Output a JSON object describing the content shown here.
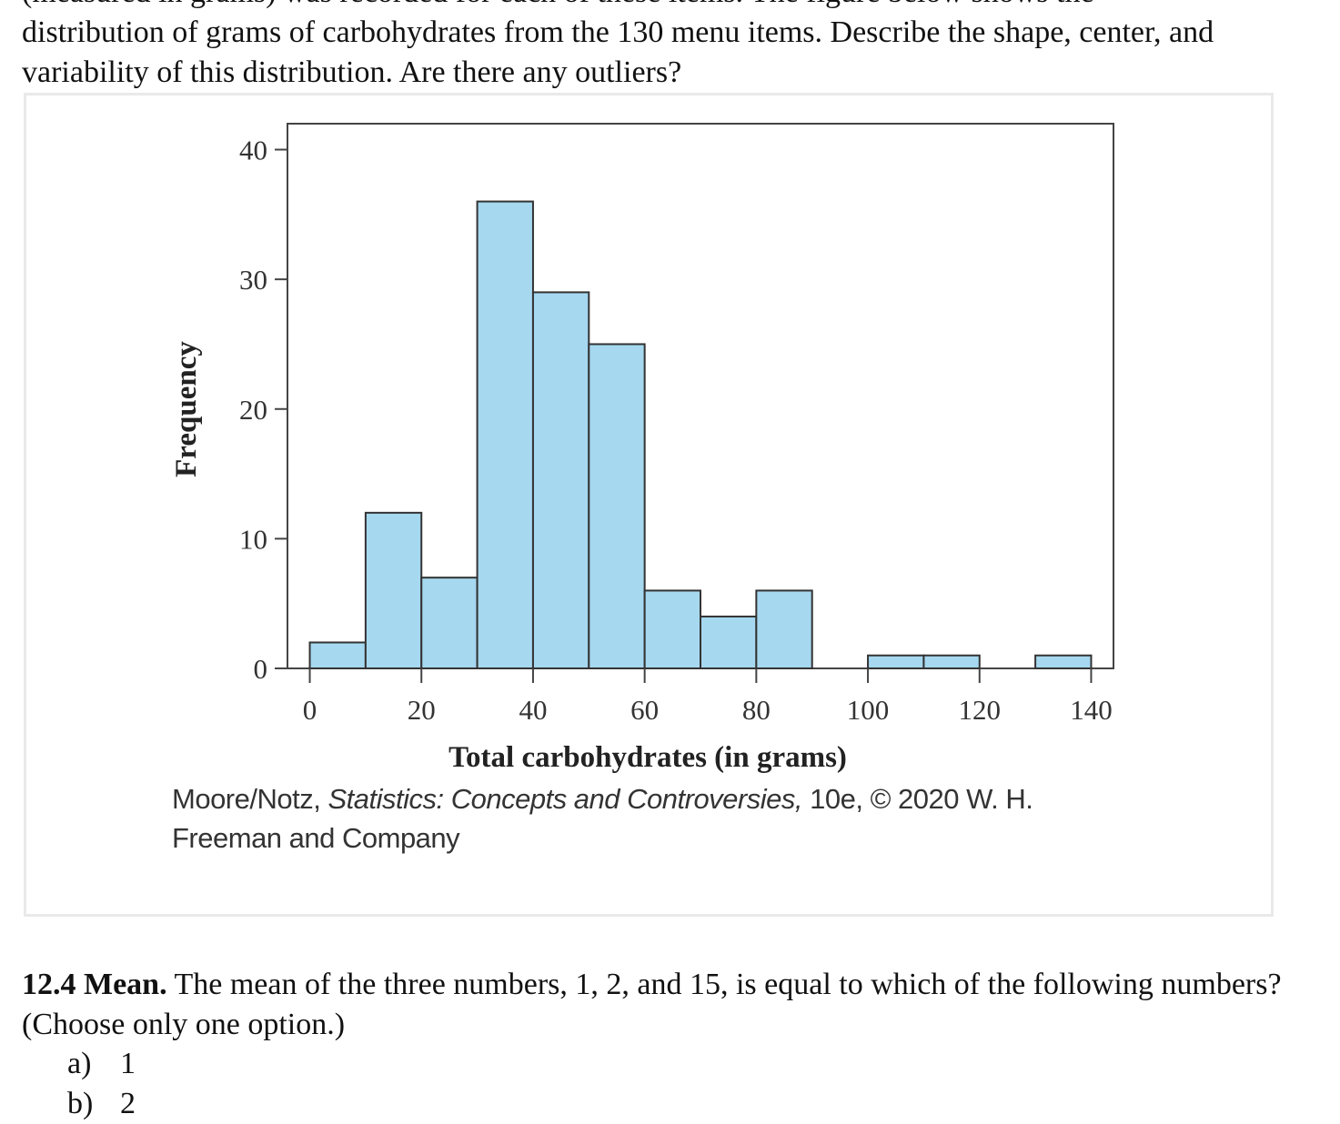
{
  "intro": {
    "cut_line": "(measured in grams) was recorded for each of these items. The figure below shows the",
    "text": "distribution of grams of carbohydrates from the 130 menu items. Describe the shape, center, and variability of this distribution. Are there any outliers?"
  },
  "colors": {
    "bar_fill": "#a6d8f0",
    "bar_stroke": "#333333",
    "axis": "#444444"
  },
  "chart_data": {
    "type": "bar",
    "title": "",
    "xlabel": "Total carbohydrates (in grams)",
    "ylabel": "Frequency",
    "bin_width": 10,
    "bin_starts": [
      0,
      10,
      20,
      30,
      40,
      50,
      60,
      70,
      80,
      90,
      100,
      110,
      120,
      130
    ],
    "values": [
      2,
      12,
      7,
      36,
      29,
      25,
      6,
      4,
      6,
      0,
      1,
      1,
      0,
      1
    ],
    "xlim": [
      -4,
      144
    ],
    "ylim": [
      0,
      42
    ],
    "x_ticks": [
      0,
      20,
      40,
      60,
      80,
      100,
      120,
      140
    ],
    "x_tick_labels": [
      "0",
      "20",
      "40",
      "60",
      "80",
      "100",
      "120",
      "140"
    ],
    "y_ticks": [
      0,
      10,
      20,
      30,
      40
    ],
    "y_tick_labels": [
      "0",
      "10",
      "20",
      "30",
      "40"
    ],
    "grid": false,
    "legend": "none"
  },
  "credit": {
    "authors": "Moore/Notz,",
    "book": "Statistics: Concepts and Controversies,",
    "rest": "10e, © 2020 W. H. Freeman and Company"
  },
  "question": {
    "number": "12.4 Mean.",
    "text": "The mean of the three numbers, 1, 2, and 15, is equal to which of the following numbers? (Choose only one option.)",
    "options": [
      {
        "label": "a)",
        "value": "1"
      },
      {
        "label": "b)",
        "value": "2"
      }
    ]
  }
}
